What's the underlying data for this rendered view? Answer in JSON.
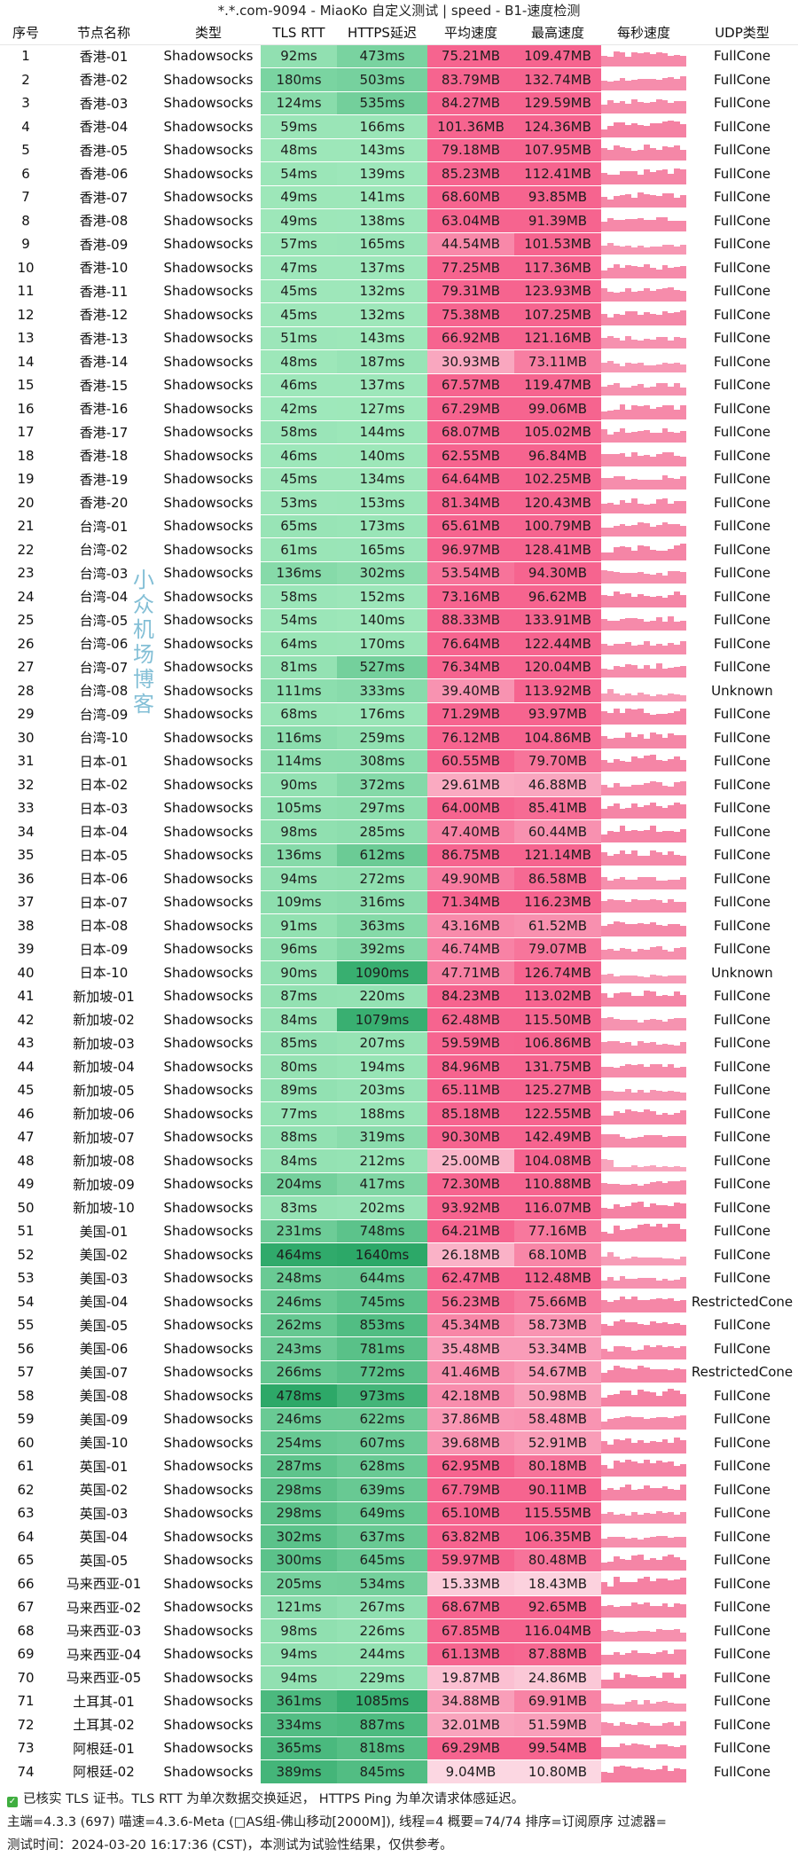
{
  "title": "*.*.com-9094 - MiaoKo 自定义测试 | speed - B1-速度检测",
  "headers": [
    "序号",
    "节点名称",
    "类型",
    "TLS RTT",
    "HTTPS延迟",
    "平均速度",
    "最高速度",
    "每秒速度",
    "UDP类型"
  ],
  "colors": {
    "green_base": "#7fdca4",
    "pink_base": "#f8799e",
    "spark": "#f4769b"
  },
  "watermark": "小众机场博客",
  "rows": [
    [
      "1",
      "香港-01",
      "Shadowsocks",
      "92ms",
      "473ms",
      "75.21MB",
      "109.47MB",
      "FullCone"
    ],
    [
      "2",
      "香港-02",
      "Shadowsocks",
      "180ms",
      "503ms",
      "83.79MB",
      "132.74MB",
      "FullCone"
    ],
    [
      "3",
      "香港-03",
      "Shadowsocks",
      "124ms",
      "535ms",
      "84.27MB",
      "129.59MB",
      "FullCone"
    ],
    [
      "4",
      "香港-04",
      "Shadowsocks",
      "59ms",
      "166ms",
      "101.36MB",
      "124.36MB",
      "FullCone"
    ],
    [
      "5",
      "香港-05",
      "Shadowsocks",
      "48ms",
      "143ms",
      "79.18MB",
      "107.95MB",
      "FullCone"
    ],
    [
      "6",
      "香港-06",
      "Shadowsocks",
      "54ms",
      "139ms",
      "85.23MB",
      "112.41MB",
      "FullCone"
    ],
    [
      "7",
      "香港-07",
      "Shadowsocks",
      "49ms",
      "141ms",
      "68.60MB",
      "93.85MB",
      "FullCone"
    ],
    [
      "8",
      "香港-08",
      "Shadowsocks",
      "49ms",
      "138ms",
      "63.04MB",
      "91.39MB",
      "FullCone"
    ],
    [
      "9",
      "香港-09",
      "Shadowsocks",
      "57ms",
      "165ms",
      "44.54MB",
      "101.53MB",
      "FullCone"
    ],
    [
      "10",
      "香港-10",
      "Shadowsocks",
      "47ms",
      "137ms",
      "77.25MB",
      "117.36MB",
      "FullCone"
    ],
    [
      "11",
      "香港-11",
      "Shadowsocks",
      "45ms",
      "132ms",
      "79.31MB",
      "123.93MB",
      "FullCone"
    ],
    [
      "12",
      "香港-12",
      "Shadowsocks",
      "45ms",
      "132ms",
      "75.38MB",
      "107.25MB",
      "FullCone"
    ],
    [
      "13",
      "香港-13",
      "Shadowsocks",
      "51ms",
      "143ms",
      "66.92MB",
      "121.16MB",
      "FullCone"
    ],
    [
      "14",
      "香港-14",
      "Shadowsocks",
      "48ms",
      "187ms",
      "30.93MB",
      "73.11MB",
      "FullCone"
    ],
    [
      "15",
      "香港-15",
      "Shadowsocks",
      "46ms",
      "137ms",
      "67.57MB",
      "119.47MB",
      "FullCone"
    ],
    [
      "16",
      "香港-16",
      "Shadowsocks",
      "42ms",
      "127ms",
      "67.29MB",
      "99.06MB",
      "FullCone"
    ],
    [
      "17",
      "香港-17",
      "Shadowsocks",
      "58ms",
      "144ms",
      "68.07MB",
      "105.02MB",
      "FullCone"
    ],
    [
      "18",
      "香港-18",
      "Shadowsocks",
      "46ms",
      "140ms",
      "62.55MB",
      "96.84MB",
      "FullCone"
    ],
    [
      "19",
      "香港-19",
      "Shadowsocks",
      "45ms",
      "134ms",
      "64.64MB",
      "102.25MB",
      "FullCone"
    ],
    [
      "20",
      "香港-20",
      "Shadowsocks",
      "53ms",
      "153ms",
      "81.34MB",
      "120.43MB",
      "FullCone"
    ],
    [
      "21",
      "台湾-01",
      "Shadowsocks",
      "65ms",
      "173ms",
      "65.61MB",
      "100.79MB",
      "FullCone"
    ],
    [
      "22",
      "台湾-02",
      "Shadowsocks",
      "61ms",
      "165ms",
      "96.97MB",
      "128.41MB",
      "FullCone"
    ],
    [
      "23",
      "台湾-03",
      "Shadowsocks",
      "136ms",
      "302ms",
      "53.54MB",
      "94.30MB",
      "FullCone"
    ],
    [
      "24",
      "台湾-04",
      "Shadowsocks",
      "58ms",
      "152ms",
      "73.16MB",
      "96.62MB",
      "FullCone"
    ],
    [
      "25",
      "台湾-05",
      "Shadowsocks",
      "54ms",
      "140ms",
      "88.33MB",
      "133.91MB",
      "FullCone"
    ],
    [
      "26",
      "台湾-06",
      "Shadowsocks",
      "64ms",
      "170ms",
      "76.64MB",
      "122.44MB",
      "FullCone"
    ],
    [
      "27",
      "台湾-07",
      "Shadowsocks",
      "81ms",
      "527ms",
      "76.34MB",
      "120.04MB",
      "FullCone"
    ],
    [
      "28",
      "台湾-08",
      "Shadowsocks",
      "111ms",
      "333ms",
      "39.40MB",
      "113.92MB",
      "Unknown"
    ],
    [
      "29",
      "台湾-09",
      "Shadowsocks",
      "68ms",
      "176ms",
      "71.29MB",
      "93.97MB",
      "FullCone"
    ],
    [
      "30",
      "台湾-10",
      "Shadowsocks",
      "116ms",
      "259ms",
      "76.12MB",
      "104.86MB",
      "FullCone"
    ],
    [
      "31",
      "日本-01",
      "Shadowsocks",
      "114ms",
      "308ms",
      "60.55MB",
      "79.70MB",
      "FullCone"
    ],
    [
      "32",
      "日本-02",
      "Shadowsocks",
      "90ms",
      "372ms",
      "29.61MB",
      "46.88MB",
      "FullCone"
    ],
    [
      "33",
      "日本-03",
      "Shadowsocks",
      "105ms",
      "297ms",
      "64.00MB",
      "85.41MB",
      "FullCone"
    ],
    [
      "34",
      "日本-04",
      "Shadowsocks",
      "98ms",
      "285ms",
      "47.40MB",
      "60.44MB",
      "FullCone"
    ],
    [
      "35",
      "日本-05",
      "Shadowsocks",
      "136ms",
      "612ms",
      "86.75MB",
      "121.14MB",
      "FullCone"
    ],
    [
      "36",
      "日本-06",
      "Shadowsocks",
      "94ms",
      "272ms",
      "49.90MB",
      "86.58MB",
      "FullCone"
    ],
    [
      "37",
      "日本-07",
      "Shadowsocks",
      "109ms",
      "316ms",
      "71.34MB",
      "116.23MB",
      "FullCone"
    ],
    [
      "38",
      "日本-08",
      "Shadowsocks",
      "91ms",
      "363ms",
      "43.16MB",
      "61.52MB",
      "FullCone"
    ],
    [
      "39",
      "日本-09",
      "Shadowsocks",
      "96ms",
      "392ms",
      "46.74MB",
      "79.07MB",
      "FullCone"
    ],
    [
      "40",
      "日本-10",
      "Shadowsocks",
      "90ms",
      "1090ms",
      "47.71MB",
      "126.74MB",
      "Unknown"
    ],
    [
      "41",
      "新加坡-01",
      "Shadowsocks",
      "87ms",
      "220ms",
      "84.23MB",
      "113.02MB",
      "FullCone"
    ],
    [
      "42",
      "新加坡-02",
      "Shadowsocks",
      "84ms",
      "1079ms",
      "62.48MB",
      "115.50MB",
      "FullCone"
    ],
    [
      "43",
      "新加坡-03",
      "Shadowsocks",
      "85ms",
      "207ms",
      "59.59MB",
      "106.86MB",
      "FullCone"
    ],
    [
      "44",
      "新加坡-04",
      "Shadowsocks",
      "80ms",
      "194ms",
      "84.96MB",
      "131.75MB",
      "FullCone"
    ],
    [
      "45",
      "新加坡-05",
      "Shadowsocks",
      "89ms",
      "203ms",
      "65.11MB",
      "125.27MB",
      "FullCone"
    ],
    [
      "46",
      "新加坡-06",
      "Shadowsocks",
      "77ms",
      "188ms",
      "85.18MB",
      "122.55MB",
      "FullCone"
    ],
    [
      "47",
      "新加坡-07",
      "Shadowsocks",
      "88ms",
      "319ms",
      "90.30MB",
      "142.49MB",
      "FullCone"
    ],
    [
      "48",
      "新加坡-08",
      "Shadowsocks",
      "84ms",
      "212ms",
      "25.00MB",
      "104.08MB",
      "FullCone"
    ],
    [
      "49",
      "新加坡-09",
      "Shadowsocks",
      "204ms",
      "417ms",
      "72.30MB",
      "110.88MB",
      "FullCone"
    ],
    [
      "50",
      "新加坡-10",
      "Shadowsocks",
      "83ms",
      "202ms",
      "93.92MB",
      "116.07MB",
      "FullCone"
    ],
    [
      "51",
      "美国-01",
      "Shadowsocks",
      "231ms",
      "748ms",
      "64.21MB",
      "77.16MB",
      "FullCone"
    ],
    [
      "52",
      "美国-02",
      "Shadowsocks",
      "464ms",
      "1640ms",
      "26.18MB",
      "68.10MB",
      "FullCone"
    ],
    [
      "53",
      "美国-03",
      "Shadowsocks",
      "248ms",
      "644ms",
      "62.47MB",
      "112.48MB",
      "FullCone"
    ],
    [
      "54",
      "美国-04",
      "Shadowsocks",
      "246ms",
      "745ms",
      "56.23MB",
      "75.66MB",
      "RestrictedCone"
    ],
    [
      "55",
      "美国-05",
      "Shadowsocks",
      "262ms",
      "853ms",
      "45.34MB",
      "58.73MB",
      "FullCone"
    ],
    [
      "56",
      "美国-06",
      "Shadowsocks",
      "243ms",
      "781ms",
      "35.48MB",
      "53.34MB",
      "FullCone"
    ],
    [
      "57",
      "美国-07",
      "Shadowsocks",
      "266ms",
      "772ms",
      "41.46MB",
      "54.67MB",
      "RestrictedCone"
    ],
    [
      "58",
      "美国-08",
      "Shadowsocks",
      "478ms",
      "973ms",
      "42.18MB",
      "50.98MB",
      "FullCone"
    ],
    [
      "59",
      "美国-09",
      "Shadowsocks",
      "246ms",
      "622ms",
      "37.86MB",
      "58.48MB",
      "FullCone"
    ],
    [
      "60",
      "美国-10",
      "Shadowsocks",
      "254ms",
      "607ms",
      "39.68MB",
      "52.91MB",
      "FullCone"
    ],
    [
      "61",
      "英国-01",
      "Shadowsocks",
      "287ms",
      "628ms",
      "62.95MB",
      "80.18MB",
      "FullCone"
    ],
    [
      "62",
      "英国-02",
      "Shadowsocks",
      "298ms",
      "639ms",
      "67.79MB",
      "90.11MB",
      "FullCone"
    ],
    [
      "63",
      "英国-03",
      "Shadowsocks",
      "298ms",
      "649ms",
      "65.10MB",
      "115.55MB",
      "FullCone"
    ],
    [
      "64",
      "英国-04",
      "Shadowsocks",
      "302ms",
      "637ms",
      "63.82MB",
      "106.35MB",
      "FullCone"
    ],
    [
      "65",
      "英国-05",
      "Shadowsocks",
      "300ms",
      "645ms",
      "59.97MB",
      "80.48MB",
      "FullCone"
    ],
    [
      "66",
      "马来西亚-01",
      "Shadowsocks",
      "205ms",
      "534ms",
      "15.33MB",
      "18.43MB",
      "FullCone"
    ],
    [
      "67",
      "马来西亚-02",
      "Shadowsocks",
      "121ms",
      "267ms",
      "68.67MB",
      "92.65MB",
      "FullCone"
    ],
    [
      "68",
      "马来西亚-03",
      "Shadowsocks",
      "98ms",
      "226ms",
      "67.85MB",
      "116.04MB",
      "FullCone"
    ],
    [
      "69",
      "马来西亚-04",
      "Shadowsocks",
      "94ms",
      "244ms",
      "61.13MB",
      "87.88MB",
      "FullCone"
    ],
    [
      "70",
      "马来西亚-05",
      "Shadowsocks",
      "94ms",
      "229ms",
      "19.87MB",
      "24.86MB",
      "FullCone"
    ],
    [
      "71",
      "土耳其-01",
      "Shadowsocks",
      "361ms",
      "1085ms",
      "34.88MB",
      "69.91MB",
      "FullCone"
    ],
    [
      "72",
      "土耳其-02",
      "Shadowsocks",
      "334ms",
      "887ms",
      "32.01MB",
      "51.59MB",
      "FullCone"
    ],
    [
      "73",
      "阿根廷-01",
      "Shadowsocks",
      "365ms",
      "818ms",
      "69.29MB",
      "99.54MB",
      "FullCone"
    ],
    [
      "74",
      "阿根廷-02",
      "Shadowsocks",
      "389ms",
      "845ms",
      "9.04MB",
      "10.80MB",
      "FullCone"
    ]
  ],
  "footer": {
    "line1": "已核实 TLS 证书。TLS RTT 为单次数据交换延迟， HTTPS Ping 为单次请求体感延迟。",
    "line2": "主端=4.3.3 (697) 喵速=4.3.6-Meta (□AS组-佛山移动[2000M]), 线程=4 概要=74/74 排序=订阅原序 过滤器=",
    "line3": "测试时间：2024-03-20 16:17:36 (CST)，本测试为试验性结果，仅供参考。"
  }
}
